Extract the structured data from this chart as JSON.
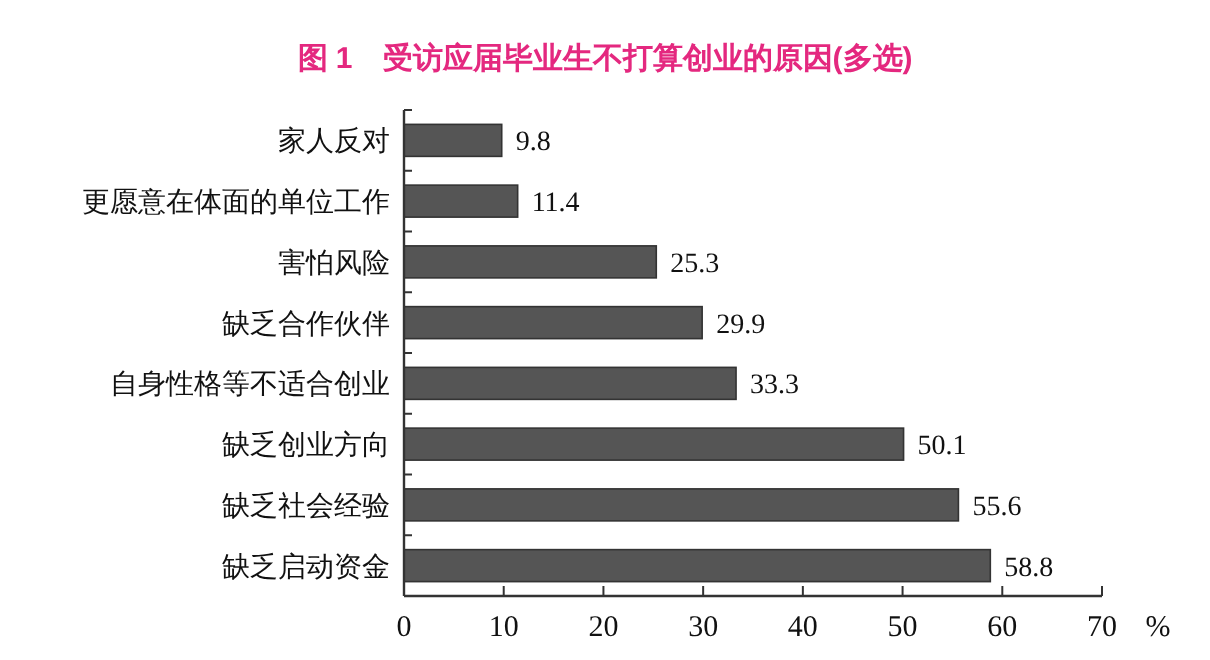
{
  "chart_data": {
    "type": "bar",
    "orientation": "horizontal",
    "title": "图 1　受访应届毕业生不打算创业的原因(多选)",
    "xlabel": "%",
    "categories": [
      "家人反对",
      "更愿意在体面的单位工作",
      "害怕风险",
      "缺乏合作伙伴",
      "自身性格等不适合创业",
      "缺乏创业方向",
      "缺乏社会经验",
      "缺乏启动资金"
    ],
    "values": [
      9.8,
      11.4,
      25.3,
      29.9,
      33.3,
      50.1,
      55.6,
      58.8
    ],
    "color": "#555555",
    "xlim": [
      0,
      70
    ],
    "xticks": [
      0,
      10,
      20,
      30,
      40,
      50,
      60,
      70
    ],
    "data_labels": true,
    "grid": false
  }
}
